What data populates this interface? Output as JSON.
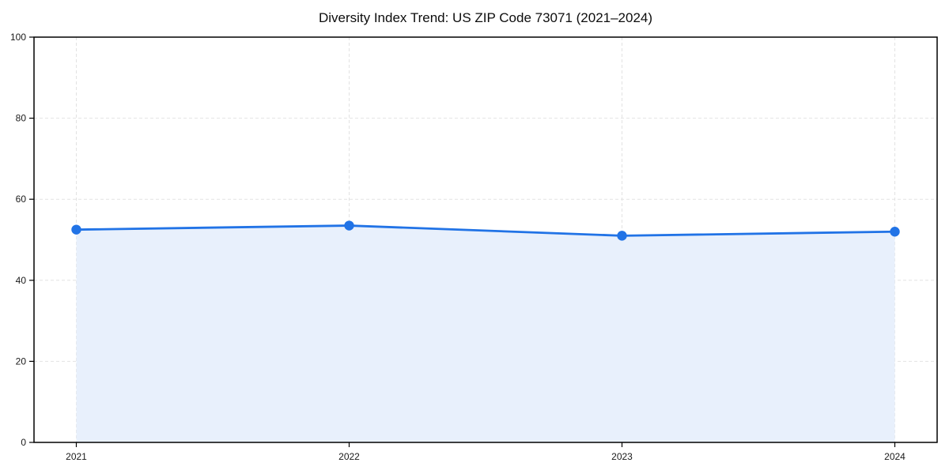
{
  "chart_data": {
    "type": "line",
    "title": "Diversity Index Trend: US ZIP Code 73071 (2021–2024)",
    "x": [
      "2021",
      "2022",
      "2023",
      "2024"
    ],
    "series": [
      {
        "name": "Diversity Index",
        "values": [
          52.5,
          53.5,
          51,
          52
        ]
      }
    ],
    "xlabel": "",
    "ylabel": "",
    "ylim": [
      0,
      100
    ],
    "yticks": [
      0,
      20,
      40,
      60,
      80,
      100
    ],
    "grid": true,
    "legend_position": "none",
    "style": {
      "line_color": "#2173e6",
      "marker_color": "#2173e6",
      "fill_color": "#e8f0fc",
      "grid_color": "#e2e2e2",
      "spine_color": "#000000",
      "background_color": "#ffffff"
    }
  }
}
